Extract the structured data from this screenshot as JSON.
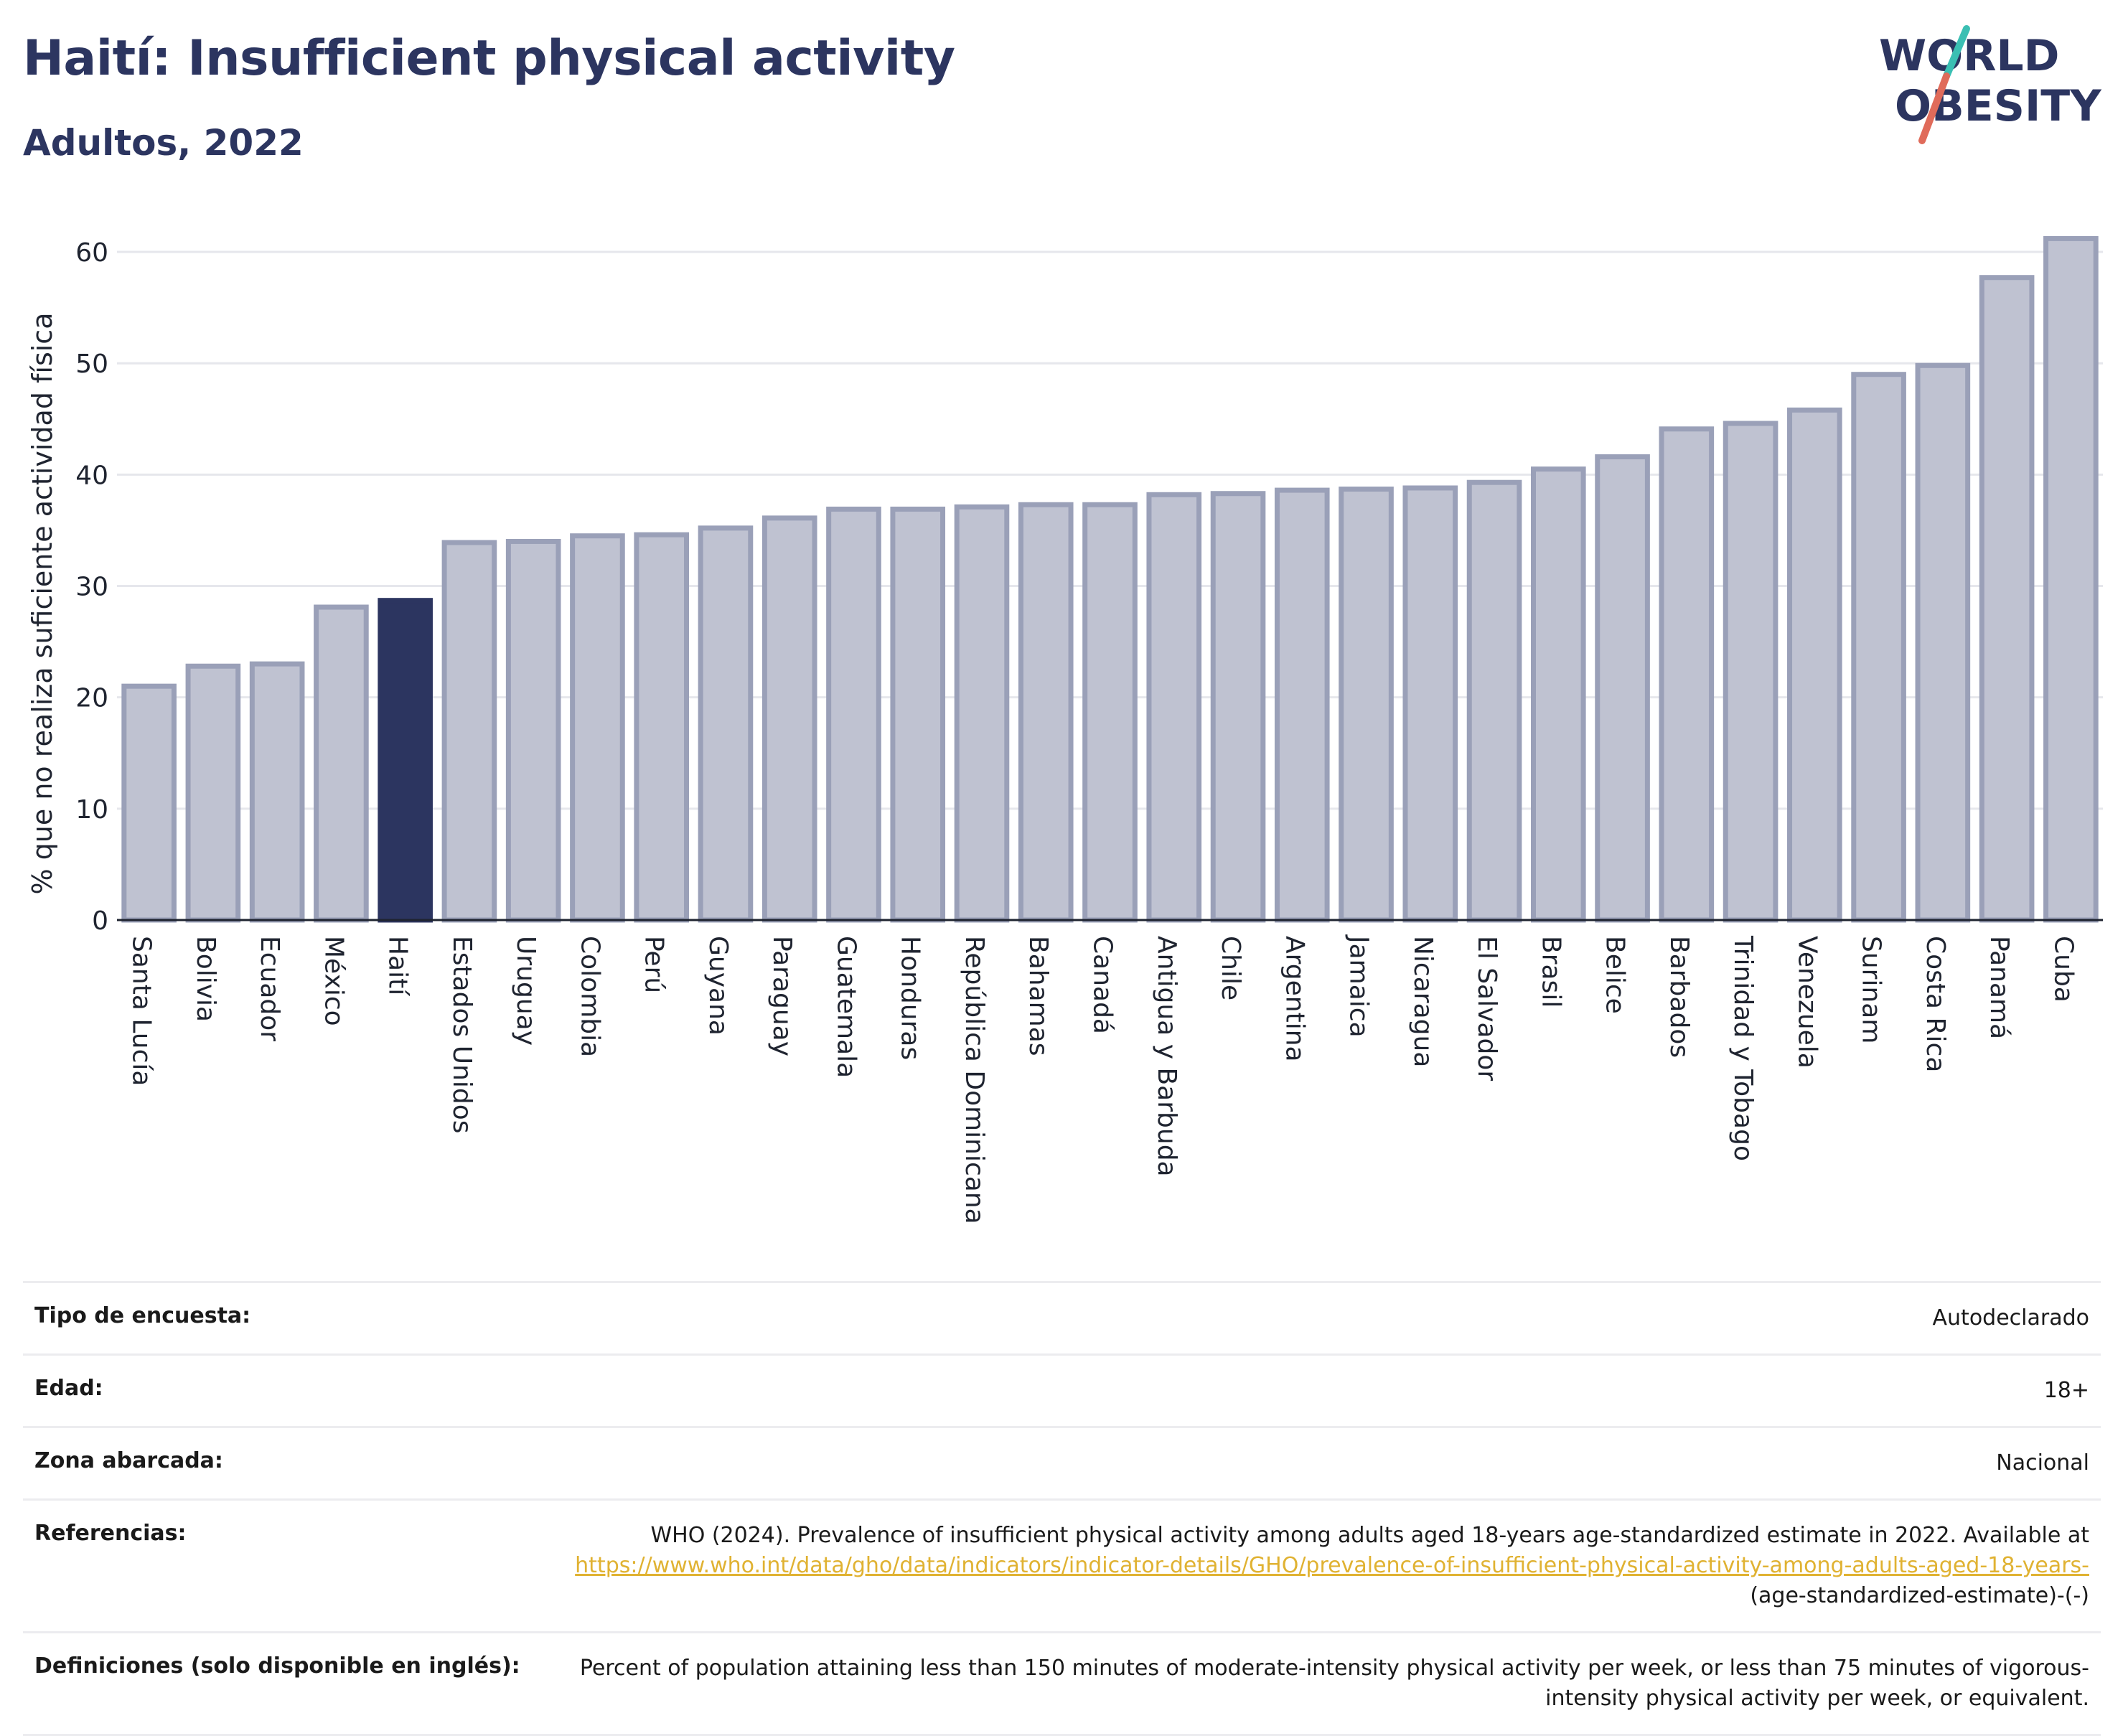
{
  "header": {
    "title": "Haití: Insufficient physical activity",
    "subtitle": "Adultos, 2022"
  },
  "logo": {
    "line1": "WORLD",
    "line2": "OBESITY"
  },
  "colors": {
    "highlight": "#2c3560",
    "bar": "#bfc2d1",
    "bar_stroke": "#9aa0b8",
    "accent_teal": "#3bbfb3",
    "accent_coral": "#e06b5a"
  },
  "chart_data": {
    "type": "bar",
    "ylabel": "% que no realiza suficiente actividad física",
    "xlabel": "",
    "ylim": [
      0,
      62
    ],
    "yticks": [
      0,
      10,
      20,
      30,
      40,
      50,
      60
    ],
    "grid": true,
    "highlight": "Haití",
    "categories": [
      "Santa Lucía",
      "Bolivia",
      "Ecuador",
      "México",
      "Haití",
      "Estados Unidos",
      "Uruguay",
      "Colombia",
      "Perú",
      "Guyana",
      "Paraguay",
      "Guatemala",
      "Honduras",
      "República Dominicana",
      "Bahamas",
      "Canadá",
      "Antigua y Barbuda",
      "Chile",
      "Argentina",
      "Jamaica",
      "Nicaragua",
      "El Salvador",
      "Brasil",
      "Belice",
      "Barbados",
      "Trinidad y Tobago",
      "Venezuela",
      "Surinam",
      "Costa Rica",
      "Panamá",
      "Cuba"
    ],
    "values": [
      21.0,
      22.8,
      23.0,
      28.1,
      28.7,
      33.9,
      34.0,
      34.5,
      34.6,
      35.2,
      36.1,
      36.9,
      36.9,
      37.1,
      37.3,
      37.3,
      38.2,
      38.3,
      38.6,
      38.7,
      38.8,
      39.3,
      40.5,
      41.6,
      44.1,
      44.6,
      45.8,
      49.0,
      49.8,
      57.7,
      61.2
    ]
  },
  "meta": [
    {
      "label": "Tipo de encuesta:",
      "value": "Autodeclarado"
    },
    {
      "label": "Edad:",
      "value": "18+"
    },
    {
      "label": "Zona abarcada:",
      "value": "Nacional"
    },
    {
      "label": "Referencias:",
      "value": "WHO (2024). Prevalence of insufficient physical activity among adults aged 18-years age-standardized estimate in 2022. Available at ",
      "link": "https://www.who.int/data/gho/data/indicators/indicator-details/GHO/prevalence-of-insufficient-physical-activity-among-adults-aged-18-years-",
      "value_after": "(age-standardized-estimate)-(-)"
    },
    {
      "label": "Definiciones (solo disponible en inglés):",
      "value": "Percent of population attaining less than 150 minutes of moderate-intensity physical activity per week, or less than 75 minutes of vigorous-intensity physical activity per week, or equivalent."
    }
  ]
}
